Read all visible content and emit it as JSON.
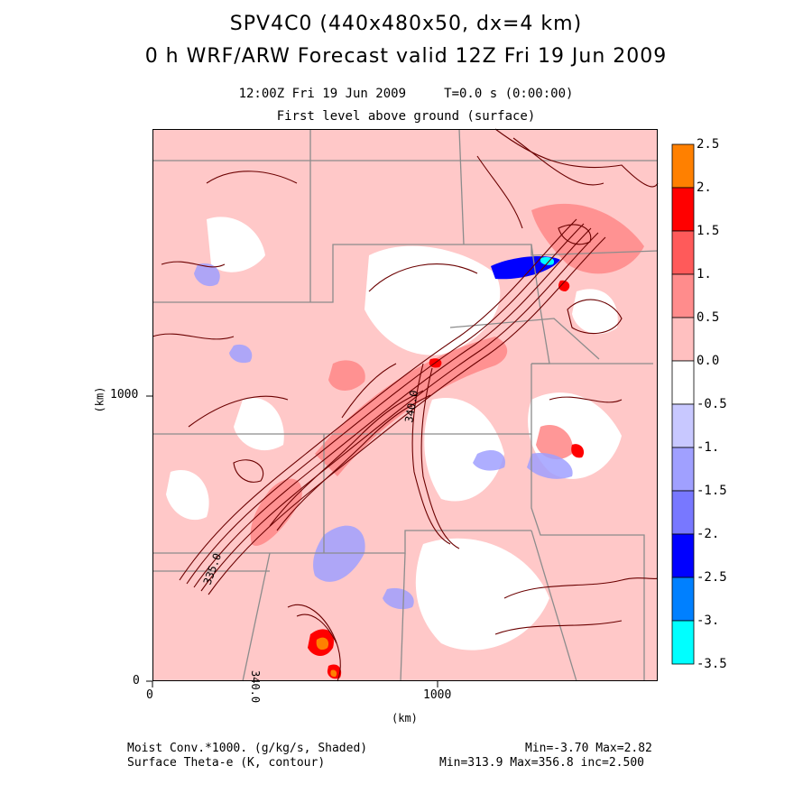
{
  "header": {
    "title_line1": "SPV4C0 (440x480x50, dx=4 km)",
    "title_line2": "0 h WRF/ARW Forecast valid 12Z Fri 19 Jun 2009",
    "time_line": "12:00Z Fri 19 Jun 2009     T=0.0 s (0:00:00)",
    "level_line": "First level above ground (surface)"
  },
  "axes": {
    "xlabel": "(km)",
    "ylabel": "(km)",
    "x_ticks": [
      "0",
      "1000"
    ],
    "y_ticks": [
      "0",
      "1000"
    ]
  },
  "contour_labels": [
    "340.0",
    "335.0",
    "340.0"
  ],
  "colorbar": {
    "labels": [
      "2.5",
      "2.",
      "1.5",
      "1.",
      "0.5",
      "0.0",
      "-0.5",
      "-1.",
      "-1.5",
      "-2.",
      "-2.5",
      "-3.",
      "-3.5"
    ],
    "colors": [
      "#ff8000",
      "#ff0000",
      "#ff5a5a",
      "#ff8c8c",
      "#ffc0c0",
      "#ffffff",
      "#c8c8ff",
      "#a0a0ff",
      "#7878ff",
      "#0000ff",
      "#0080ff",
      "#00ffff"
    ]
  },
  "footer": {
    "field1": "Moist Conv.*1000. (g/kg/s, Shaded)",
    "field2": "Surface Theta-e (K, contour)",
    "stats1": "Min=-3.70 Max=2.82",
    "stats2": "Min=313.9 Max=356.8 inc=2.500"
  },
  "map_colors": {
    "fill_base": "#ffc8c8",
    "contour": "#6b0000",
    "border": "#8c8c8c"
  }
}
